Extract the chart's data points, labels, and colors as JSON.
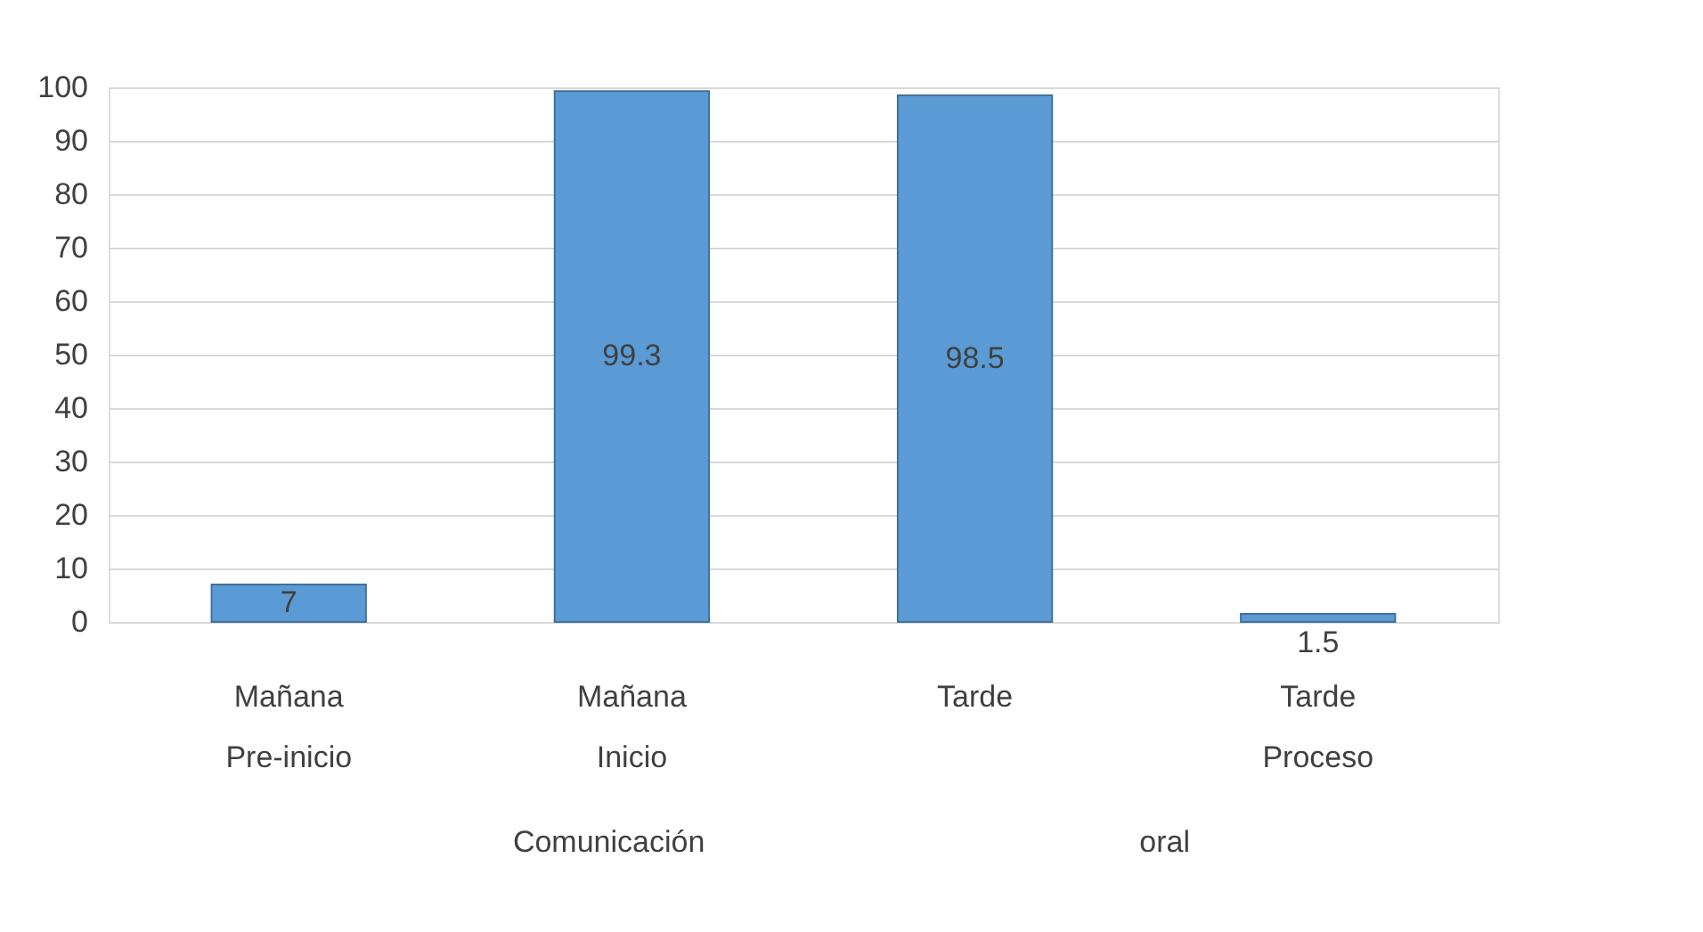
{
  "chart_data": {
    "type": "bar",
    "categories": [
      "Mañana\nPre-inicio",
      "Mañana\nInicio",
      "Tarde",
      "Tarde\nProceso"
    ],
    "values": [
      7,
      99.3,
      98.5,
      1.5
    ],
    "color": "#5b9bd5",
    "data_labels": true,
    "ylim": [
      0,
      100
    ],
    "yticks": [
      0,
      10,
      20,
      30,
      40,
      50,
      60,
      70,
      80,
      90,
      100
    ],
    "grid": "y",
    "annotations": [
      "Comunicación",
      "oral"
    ]
  }
}
